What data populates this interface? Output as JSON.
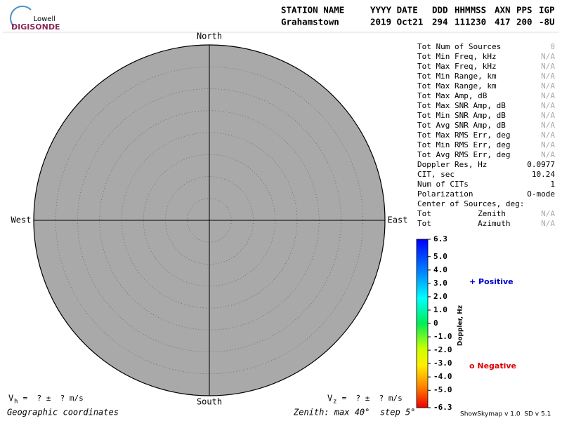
{
  "logo": {
    "top": "Lowell",
    "bottom": "DIGISONDE"
  },
  "header": {
    "labels": [
      "STATION NAME",
      "YYYY DATE",
      "DDD",
      "HHMMSS",
      "AXN",
      "PPS",
      "IGP"
    ],
    "values": [
      "Grahamstown",
      "2019 Oct21",
      "294",
      "111230",
      "417",
      "200",
      "-8U"
    ]
  },
  "skymap": {
    "north": "North",
    "south": "South",
    "west": "West",
    "east": "East",
    "fill": "#a9a9a9"
  },
  "stats": [
    {
      "label": "Tot Num of Sources",
      "value": "0",
      "color": "#aaaaaa"
    },
    {
      "label": "Tot Min Freq, kHz",
      "value": "N/A",
      "color": "#aaaaaa"
    },
    {
      "label": "Tot Max Freq, kHz",
      "value": "N/A",
      "color": "#aaaaaa"
    },
    {
      "label": "Tot Min Range, km",
      "value": "N/A",
      "color": "#aaaaaa"
    },
    {
      "label": "Tot Max Range, km",
      "value": "N/A",
      "color": "#aaaaaa"
    },
    {
      "label": "Tot Max Amp, dB",
      "value": "N/A",
      "color": "#aaaaaa"
    },
    {
      "label": "Tot Max SNR Amp, dB",
      "value": "N/A",
      "color": "#aaaaaa"
    },
    {
      "label": "Tot Min SNR Amp, dB",
      "value": "N/A",
      "color": "#aaaaaa"
    },
    {
      "label": "Tot Avg SNR Amp, dB",
      "value": "N/A",
      "color": "#aaaaaa"
    },
    {
      "label": "Tot Max RMS Err, deg",
      "value": "N/A",
      "color": "#aaaaaa"
    },
    {
      "label": "Tot Min RMS Err, deg",
      "value": "N/A",
      "color": "#aaaaaa"
    },
    {
      "label": "Tot Avg RMS Err, deg",
      "value": "N/A",
      "color": "#aaaaaa"
    },
    {
      "label": "Doppler Res, Hz",
      "value": "0.0977",
      "color": "#000000"
    },
    {
      "label": "CIT, sec",
      "value": "10.24",
      "color": "#000000"
    },
    {
      "label": "Num of CITs",
      "value": "1",
      "color": "#000000"
    },
    {
      "label": "Polarization",
      "value": "O-mode",
      "color": "#000000"
    },
    {
      "label": "Center of Sources, deg:",
      "value": null,
      "color": "#000000"
    },
    {
      "label": "Tot          Zenith",
      "value": "N/A",
      "color": "#aaaaaa"
    },
    {
      "label": "Tot          Azimuth",
      "value": "N/A",
      "color": "#aaaaaa"
    }
  ],
  "colorbar": {
    "title": "Doppler, Hz",
    "lim": [
      -6.3,
      6.3
    ],
    "ticks": [
      6.3,
      {
        "value": 5,
        "label": "5.0"
      },
      {
        "value": 4,
        "label": "4.0"
      },
      {
        "value": 3,
        "label": "3.0"
      },
      {
        "value": 2,
        "label": "2.0"
      },
      {
        "value": 1,
        "label": "1.0"
      },
      0,
      {
        "value": -1,
        "label": "-1.0"
      },
      {
        "value": -2,
        "label": "-2.0"
      },
      {
        "value": -3,
        "label": "-3.0"
      },
      {
        "value": -4,
        "label": "-4.0"
      },
      {
        "value": -5,
        "label": "-5.0"
      },
      -6.3
    ]
  },
  "legend": {
    "positive": "+ Positive",
    "positive_color": "#0000cc",
    "negative": "o Negative",
    "negative_color": "#dd0000"
  },
  "footer": {
    "vh": {
      "symbol": "V",
      "sub": "h",
      "text": " =  ? ±  ? m/s"
    },
    "vz": {
      "symbol": "V",
      "sub": "z",
      "text": " =  ? ±  ? m/s"
    },
    "coords": "Geographic coordinates",
    "zenith": "Zenith: max 40°  step 5°",
    "version": "ShowSkymap v 1.0  SD v 5.1"
  }
}
